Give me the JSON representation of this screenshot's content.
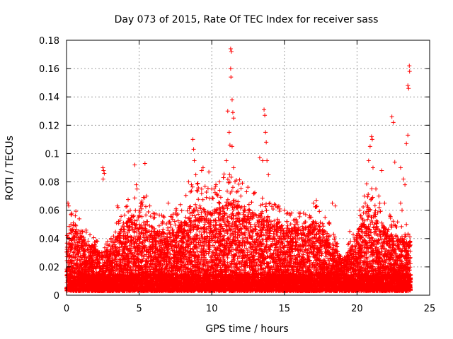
{
  "chart_data": {
    "type": "scatter",
    "title": "Day 073 of 2015, Rate Of TEC Index for receiver sass",
    "xlabel": "GPS time / hours",
    "ylabel": "ROTI / TECUs",
    "xlim": [
      0,
      25
    ],
    "ylim": [
      0,
      0.18
    ],
    "x_ticks": [
      0,
      5,
      10,
      15,
      20,
      25
    ],
    "x_tick_labels": [
      "0",
      "5",
      "10",
      "15",
      "20",
      "25"
    ],
    "y_ticks": [
      0,
      0.02,
      0.04,
      0.06,
      0.08,
      0.1,
      0.12,
      0.14,
      0.16,
      0.18
    ],
    "y_tick_labels": [
      "0",
      "0.02",
      "0.04",
      "0.06",
      "0.08",
      "0.1",
      "0.12",
      "0.14",
      "0.16",
      "0.18"
    ],
    "grid": true,
    "marker": "+",
    "marker_color": "#ff0000",
    "data_range_hours": [
      0,
      23.7
    ],
    "envelope": {
      "description": "approximate upper envelope of the dense point cloud (hour, ROTI)",
      "points": [
        [
          0,
          0.035
        ],
        [
          0.5,
          0.05
        ],
        [
          1,
          0.04
        ],
        [
          2,
          0.03
        ],
        [
          2.5,
          0.025
        ],
        [
          3,
          0.03
        ],
        [
          3.5,
          0.04
        ],
        [
          4,
          0.05
        ],
        [
          5,
          0.055
        ],
        [
          6,
          0.045
        ],
        [
          7,
          0.04
        ],
        [
          8,
          0.05
        ],
        [
          9,
          0.06
        ],
        [
          10,
          0.055
        ],
        [
          11,
          0.065
        ],
        [
          12,
          0.06
        ],
        [
          13,
          0.055
        ],
        [
          14,
          0.05
        ],
        [
          15,
          0.045
        ],
        [
          16,
          0.045
        ],
        [
          17,
          0.05
        ],
        [
          18,
          0.04
        ],
        [
          19,
          0.02
        ],
        [
          20,
          0.04
        ],
        [
          20.7,
          0.06
        ],
        [
          21.5,
          0.05
        ],
        [
          22.5,
          0.04
        ],
        [
          23.7,
          0.035
        ]
      ]
    },
    "notable_points": [
      [
        0.1,
        0.065
      ],
      [
        0.15,
        0.063
      ],
      [
        0.3,
        0.05
      ],
      [
        0.5,
        0.049
      ],
      [
        2.5,
        0.09
      ],
      [
        2.55,
        0.088
      ],
      [
        2.6,
        0.086
      ],
      [
        2.52,
        0.082
      ],
      [
        3.5,
        0.063
      ],
      [
        3.55,
        0.062
      ],
      [
        4.7,
        0.092
      ],
      [
        5.4,
        0.093
      ],
      [
        4.8,
        0.078
      ],
      [
        4.85,
        0.075
      ],
      [
        5.0,
        0.06
      ],
      [
        5.5,
        0.07
      ],
      [
        7.0,
        0.065
      ],
      [
        7.5,
        0.058
      ],
      [
        8.4,
        0.08
      ],
      [
        8.6,
        0.078
      ],
      [
        8.7,
        0.11
      ],
      [
        8.75,
        0.103
      ],
      [
        8.8,
        0.095
      ],
      [
        8.9,
        0.085
      ],
      [
        9.3,
        0.088
      ],
      [
        9.4,
        0.09
      ],
      [
        9.8,
        0.087
      ],
      [
        10.0,
        0.075
      ],
      [
        10.8,
        0.083
      ],
      [
        11.0,
        0.095
      ],
      [
        11.1,
        0.13
      ],
      [
        11.2,
        0.115
      ],
      [
        11.25,
        0.106
      ],
      [
        11.3,
        0.174
      ],
      [
        11.35,
        0.172
      ],
      [
        11.3,
        0.16
      ],
      [
        11.32,
        0.154
      ],
      [
        11.4,
        0.138
      ],
      [
        11.45,
        0.129
      ],
      [
        11.5,
        0.125
      ],
      [
        11.4,
        0.105
      ],
      [
        11.5,
        0.09
      ],
      [
        11.6,
        0.08
      ],
      [
        12.0,
        0.07
      ],
      [
        12.5,
        0.06
      ],
      [
        13.3,
        0.097
      ],
      [
        13.5,
        0.095
      ],
      [
        13.6,
        0.131
      ],
      [
        13.65,
        0.127
      ],
      [
        13.7,
        0.115
      ],
      [
        13.75,
        0.108
      ],
      [
        13.8,
        0.095
      ],
      [
        13.9,
        0.085
      ],
      [
        14.0,
        0.065
      ],
      [
        14.5,
        0.062
      ],
      [
        15.0,
        0.06
      ],
      [
        15.5,
        0.058
      ],
      [
        16.0,
        0.058
      ],
      [
        17.0,
        0.065
      ],
      [
        17.2,
        0.067
      ],
      [
        17.8,
        0.055
      ],
      [
        18.3,
        0.065
      ],
      [
        18.5,
        0.063
      ],
      [
        19.5,
        0.045
      ],
      [
        20.2,
        0.06
      ],
      [
        20.5,
        0.07
      ],
      [
        20.8,
        0.095
      ],
      [
        20.9,
        0.105
      ],
      [
        21.0,
        0.112
      ],
      [
        21.05,
        0.11
      ],
      [
        21.1,
        0.09
      ],
      [
        21.3,
        0.075
      ],
      [
        21.5,
        0.07
      ],
      [
        21.7,
        0.088
      ],
      [
        21.9,
        0.065
      ],
      [
        22.4,
        0.126
      ],
      [
        22.5,
        0.122
      ],
      [
        22.6,
        0.094
      ],
      [
        23.0,
        0.09
      ],
      [
        23.2,
        0.082
      ],
      [
        23.3,
        0.078
      ],
      [
        23.4,
        0.107
      ],
      [
        23.5,
        0.113
      ],
      [
        23.5,
        0.148
      ],
      [
        23.55,
        0.146
      ],
      [
        23.6,
        0.162
      ],
      [
        23.62,
        0.158
      ],
      [
        23.0,
        0.065
      ],
      [
        23.1,
        0.06
      ],
      [
        23.4,
        0.05
      ]
    ]
  }
}
